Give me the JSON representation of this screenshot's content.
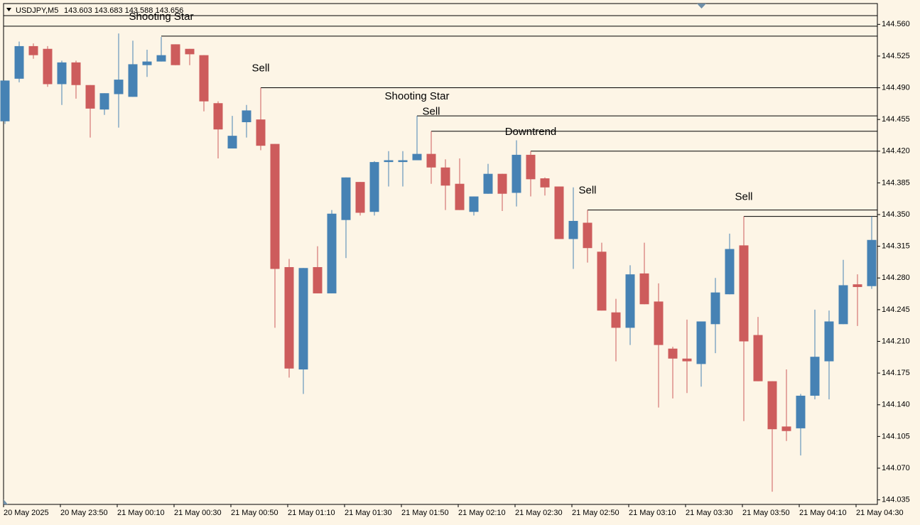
{
  "header": {
    "symbol": "USDJPY,M5",
    "quote": "143.603 143.683 143.588 143.656"
  },
  "chart_data": {
    "type": "candlestick",
    "categories": [
      "20 May 2025",
      null,
      null,
      null,
      "20 May 23:50",
      null,
      null,
      null,
      "21 May 00:10",
      null,
      null,
      null,
      "21 May 00:30",
      null,
      null,
      null,
      "21 May 00:50",
      null,
      null,
      null,
      "21 May 01:10",
      null,
      null,
      null,
      "21 May 01:30",
      null,
      null,
      null,
      "21 May 01:50",
      null,
      null,
      null,
      "21 May 02:10",
      null,
      null,
      null,
      "21 May 02:30",
      null,
      null,
      null,
      "21 May 02:50",
      null,
      null,
      null,
      "21 May 03:10",
      null,
      null,
      null,
      "21 May 03:30",
      null,
      null,
      null,
      "21 May 03:50",
      null,
      null,
      null,
      "21 May 04:10",
      null,
      null,
      null,
      "21 May 04:30",
      null
    ],
    "open": [
      144.453,
      144.5,
      144.536,
      144.533,
      144.494,
      144.518,
      144.493,
      144.466,
      144.483,
      144.48,
      144.515,
      144.519,
      144.538,
      144.533,
      144.526,
      144.473,
      144.423,
      144.452,
      144.455,
      144.428,
      144.292,
      144.179,
      144.292,
      144.263,
      144.344,
      144.386,
      144.353,
      144.408,
      144.408,
      144.41,
      144.417,
      144.402,
      144.384,
      144.353,
      144.373,
      144.395,
      144.374,
      144.416,
      144.39,
      144.381,
      144.323,
      144.341,
      144.309,
      144.242,
      144.225,
      144.285,
      144.254,
      144.202,
      144.191,
      144.185,
      144.229,
      144.262,
      144.316,
      144.217,
      144.166,
      144.116,
      144.114,
      144.15,
      144.188,
      144.229,
      144.273,
      144.271
    ],
    "high": [
      144.498,
      144.541,
      144.539,
      144.536,
      144.52,
      144.52,
      144.493,
      144.484,
      144.55,
      144.542,
      144.532,
      144.546,
      144.538,
      144.533,
      144.526,
      144.475,
      144.459,
      144.471,
      144.49,
      144.428,
      144.301,
      144.291,
      144.315,
      144.355,
      144.391,
      144.386,
      144.409,
      144.42,
      144.42,
      144.459,
      144.442,
      144.411,
      144.412,
      144.37,
      144.406,
      144.395,
      144.432,
      144.42,
      144.391,
      144.381,
      144.38,
      144.355,
      144.319,
      144.257,
      144.294,
      144.319,
      144.274,
      144.204,
      144.234,
      144.232,
      144.28,
      144.329,
      144.348,
      144.237,
      144.166,
      144.179,
      144.152,
      144.245,
      144.244,
      144.3,
      144.284,
      144.348
    ],
    "low": [
      144.45,
      144.496,
      144.522,
      144.491,
      144.471,
      144.478,
      144.435,
      144.46,
      144.446,
      144.48,
      144.502,
      144.519,
      144.515,
      144.515,
      144.464,
      144.412,
      144.423,
      144.435,
      144.421,
      144.225,
      144.17,
      144.152,
      144.263,
      144.263,
      144.302,
      144.349,
      144.349,
      144.381,
      144.381,
      144.41,
      144.384,
      144.355,
      144.355,
      144.349,
      144.373,
      144.354,
      144.359,
      144.37,
      144.371,
      144.323,
      144.29,
      144.297,
      144.244,
      144.188,
      144.206,
      144.251,
      144.137,
      144.147,
      144.153,
      144.16,
      144.197,
      144.262,
      144.122,
      144.166,
      144.044,
      144.1,
      144.084,
      144.146,
      144.146,
      144.229,
      144.227,
      144.268
    ],
    "close": [
      144.498,
      144.536,
      144.526,
      144.494,
      144.518,
      144.493,
      144.467,
      144.484,
      144.499,
      144.516,
      144.519,
      144.526,
      144.515,
      144.527,
      144.475,
      144.444,
      144.437,
      144.465,
      144.426,
      144.29,
      144.18,
      144.291,
      144.263,
      144.351,
      144.391,
      144.352,
      144.408,
      144.41,
      144.41,
      144.417,
      144.402,
      144.382,
      144.355,
      144.37,
      144.395,
      144.373,
      144.416,
      144.389,
      144.38,
      144.323,
      144.343,
      144.313,
      144.244,
      144.225,
      144.284,
      144.251,
      144.206,
      144.191,
      144.188,
      144.232,
      144.264,
      144.312,
      144.21,
      144.166,
      144.113,
      144.111,
      144.15,
      144.193,
      144.232,
      144.272,
      144.27,
      144.322
    ],
    "up_color": "#4682b4",
    "down_color": "#cd5c5c",
    "ylim": [
      144.03,
      144.583
    ],
    "yticks": [
      {
        "value": 144.56,
        "label": "144.560"
      },
      144.525,
      {
        "value": 144.49,
        "label": "144.490"
      },
      144.455,
      {
        "value": 144.42,
        "label": "144.420"
      },
      144.385,
      {
        "value": 144.35,
        "label": "144.350"
      },
      144.315,
      {
        "value": 144.28,
        "label": "144.280"
      },
      144.245,
      {
        "value": 144.21,
        "label": "144.210"
      },
      144.175,
      {
        "value": 144.14,
        "label": "144.140"
      },
      144.105,
      {
        "value": 144.07,
        "label": "144.070"
      },
      144.035
    ],
    "levels": [
      144.558
    ],
    "annotations": [
      {
        "text": "Shooting Star",
        "value": 144.547,
        "index": 11
      },
      {
        "text": "Sell",
        "value": 144.49,
        "index": 18
      },
      {
        "text": "Shooting Star",
        "value": 144.459,
        "index": 29
      },
      {
        "text": "Sell",
        "value": 144.442,
        "index": 30
      },
      {
        "text": "Downtrend",
        "value": 144.42,
        "index": 37
      },
      {
        "text": "Sell",
        "value": 144.355,
        "index": 41
      },
      {
        "text": "Sell",
        "value": 144.348,
        "index": 52
      }
    ]
  }
}
